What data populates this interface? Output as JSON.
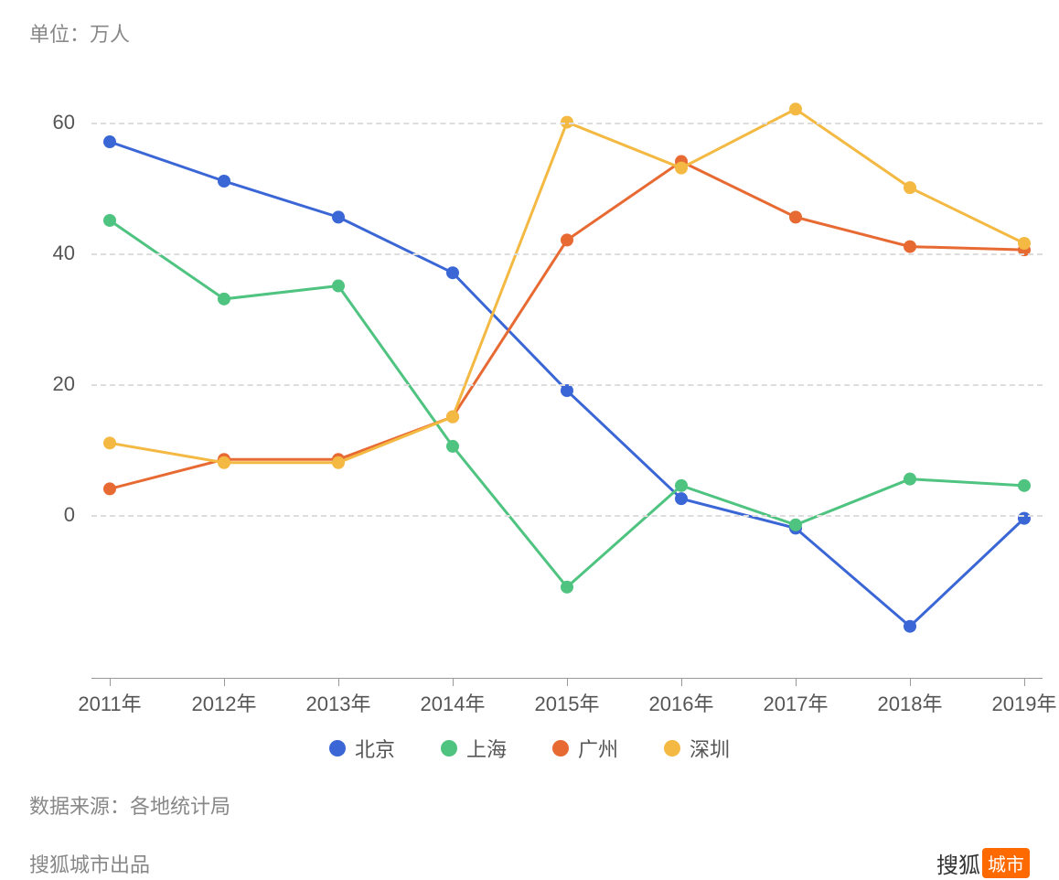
{
  "chart": {
    "type": "line",
    "unit_label": "单位：万人",
    "source_label": "数据来源：各地统计局",
    "footer_text": "搜狐城市出品",
    "brand_text": "搜狐",
    "brand_tag": "城市",
    "background_color": "#ffffff",
    "grid_color": "#dddddd",
    "text_color": "#555555",
    "label_color": "#888888",
    "axis_fontsize": 22,
    "label_fontsize": 22,
    "line_width": 3,
    "marker_radius": 7,
    "ylim": [
      -25,
      70
    ],
    "yticks": [
      0,
      20,
      40,
      60
    ],
    "categories": [
      "2011年",
      "2012年",
      "2013年",
      "2014年",
      "2015年",
      "2016年",
      "2017年",
      "2018年",
      "2019年"
    ],
    "series": [
      {
        "name": "北京",
        "color": "#3a66d6",
        "values": [
          57,
          51,
          45.5,
          37,
          19,
          2.5,
          -2,
          -17,
          -0.5
        ]
      },
      {
        "name": "上海",
        "color": "#4fc380",
        "values": [
          45,
          33,
          35,
          10.5,
          -11,
          4.5,
          -1.5,
          5.5,
          4.5
        ]
      },
      {
        "name": "广州",
        "color": "#e86a33",
        "values": [
          4,
          8.5,
          8.5,
          15,
          42,
          54,
          45.5,
          41,
          40.5
        ]
      },
      {
        "name": "深圳",
        "color": "#f4b942",
        "values": [
          11,
          8,
          8,
          15,
          60,
          53,
          62,
          50,
          41.5
        ]
      }
    ]
  }
}
